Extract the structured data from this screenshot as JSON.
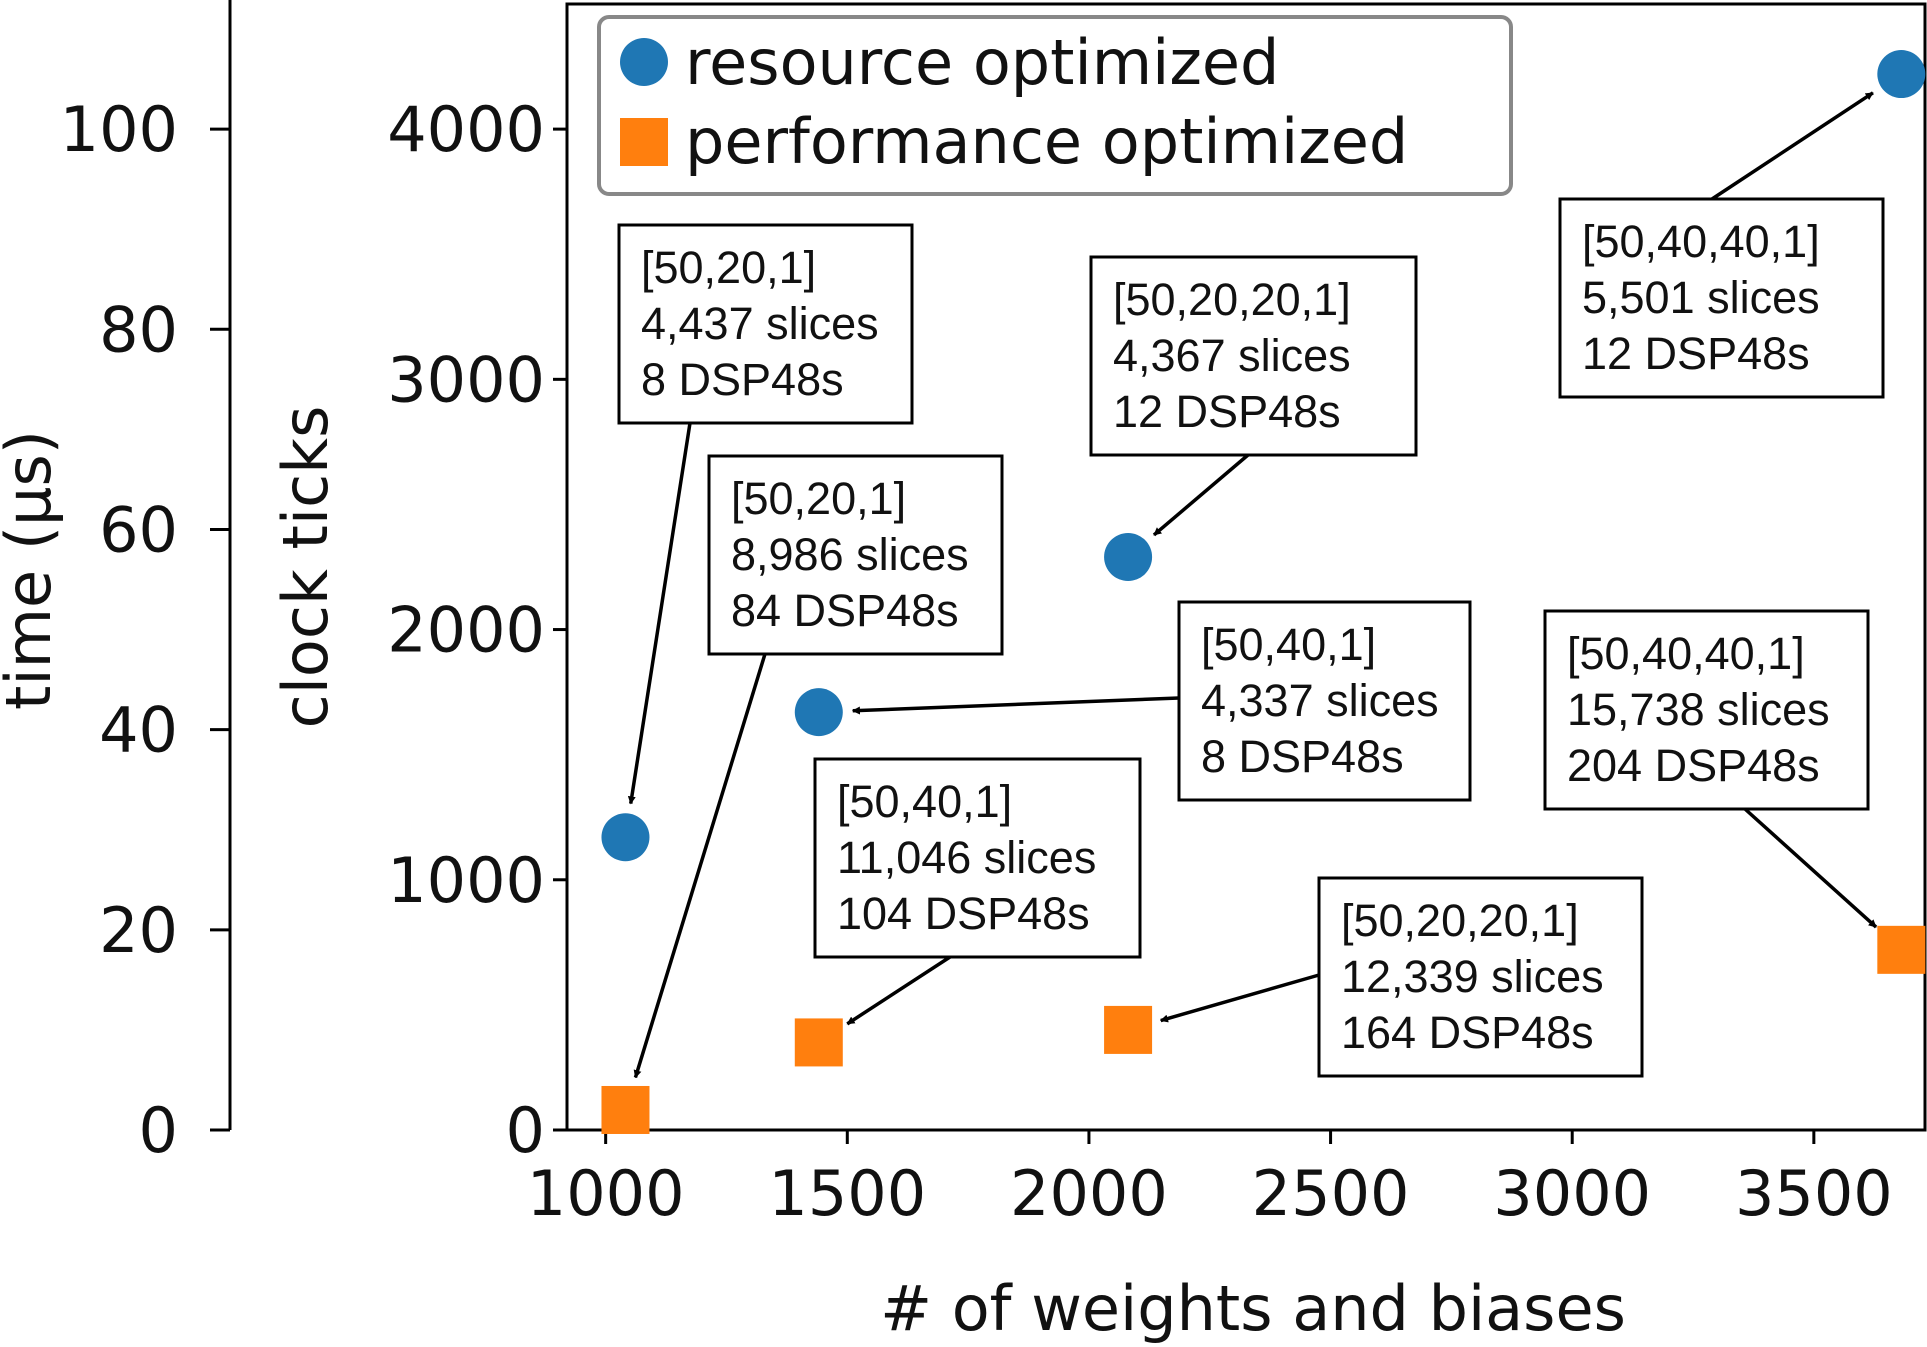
{
  "chart_data": {
    "type": "scatter",
    "xlabel": "# of weights and biases",
    "ylabel": "clock ticks",
    "y2label": "time (μs)",
    "xlim": [
      920,
      3730
    ],
    "ylim": [
      0,
      4500
    ],
    "xticks": [
      1000,
      1500,
      2000,
      2500,
      3000,
      3500
    ],
    "yticks": [
      0,
      1000,
      2000,
      3000,
      4000
    ],
    "time_axis": {
      "ticks": [
        0,
        20,
        40,
        60,
        80,
        100
      ],
      "max": 112.5
    },
    "grid": false,
    "legend_position": "top-left",
    "series": [
      {
        "name": "resource optimized",
        "marker": "circle",
        "color": "#1f77b4",
        "points": [
          {
            "x": 1041,
            "y": 1170
          },
          {
            "x": 1441,
            "y": 1670
          },
          {
            "x": 2081,
            "y": 2290
          },
          {
            "x": 3681,
            "y": 4220
          }
        ]
      },
      {
        "name": "performance optimized",
        "marker": "square",
        "color": "#ff7f0e",
        "points": [
          {
            "x": 1041,
            "y": 80
          },
          {
            "x": 1441,
            "y": 350
          },
          {
            "x": 2081,
            "y": 400
          },
          {
            "x": 3681,
            "y": 720
          }
        ]
      }
    ],
    "annotations": [
      {
        "lines": [
          "[50,20,1]",
          "4,437 slices",
          "8 DSP48s"
        ]
      },
      {
        "lines": [
          "[50,20,1]",
          "8,986 slices",
          "84 DSP48s"
        ]
      },
      {
        "lines": [
          "[50,20,20,1]",
          "4,367 slices",
          "12 DSP48s"
        ]
      },
      {
        "lines": [
          "[50,40,40,1]",
          "5,501 slices",
          "12 DSP48s"
        ]
      },
      {
        "lines": [
          "[50,40,1]",
          "4,337 slices",
          "8 DSP48s"
        ]
      },
      {
        "lines": [
          "[50,40,1]",
          "11,046 slices",
          "104 DSP48s"
        ]
      },
      {
        "lines": [
          "[50,40,40,1]",
          "15,738 slices",
          "204 DSP48s"
        ]
      },
      {
        "lines": [
          "[50,20,20,1]",
          "12,339 slices",
          "164 DSP48s"
        ]
      }
    ]
  }
}
